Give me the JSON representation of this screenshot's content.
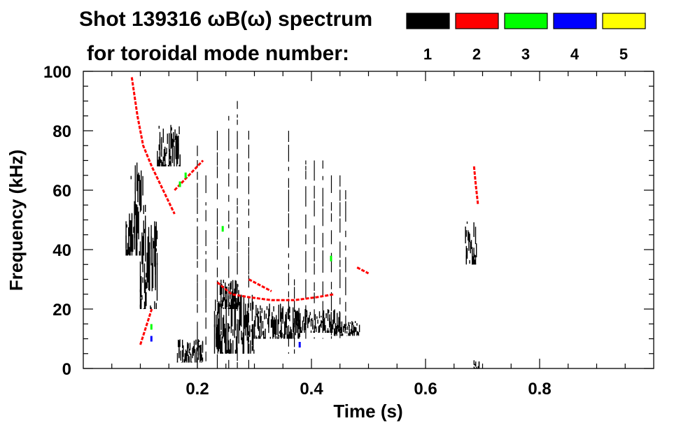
{
  "chart_data": {
    "type": "heatmap",
    "title_line1": "Shot 139316 ωB(ω) spectrum",
    "title_line2": "for toroidal mode number:",
    "xlabel": "Time (s)",
    "ylabel": "Frequency (kHz)",
    "xlim": [
      0.0,
      1.0
    ],
    "ylim": [
      0,
      100
    ],
    "xticks": [
      0.2,
      0.4,
      0.6,
      0.8
    ],
    "xtick_labels": [
      "0.2",
      "0.4",
      "0.6",
      "0.8"
    ],
    "yticks": [
      0,
      20,
      40,
      60,
      80,
      100
    ],
    "ytick_labels": [
      "0",
      "20",
      "40",
      "60",
      "80",
      "100"
    ],
    "legend_position": "top-right",
    "legend": [
      {
        "label": "1",
        "color": "#000000"
      },
      {
        "label": "2",
        "color": "#ff0000"
      },
      {
        "label": "3",
        "color": "#00ff00"
      },
      {
        "label": "4",
        "color": "#0000ff"
      },
      {
        "label": "5",
        "color": "#ffff00"
      }
    ],
    "series": [
      {
        "name": "1",
        "color": "#000000",
        "regions": [
          {
            "t": [
              0.075,
              0.11
            ],
            "f": [
              38,
              70
            ]
          },
          {
            "t": [
              0.1,
              0.13
            ],
            "f": [
              20,
              50
            ]
          },
          {
            "t": [
              0.13,
              0.17
            ],
            "f": [
              68,
              82
            ]
          },
          {
            "t": [
              0.165,
              0.21
            ],
            "f": [
              2,
              10
            ]
          },
          {
            "t": [
              0.23,
              0.3
            ],
            "f": [
              5,
              25
            ]
          },
          {
            "t": [
              0.24,
              0.275
            ],
            "f": [
              20,
              30
            ]
          },
          {
            "t": [
              0.3,
              0.38
            ],
            "f": [
              10,
              22
            ]
          },
          {
            "t": [
              0.37,
              0.45
            ],
            "f": [
              12,
              20
            ]
          },
          {
            "t": [
              0.44,
              0.485
            ],
            "f": [
              11,
              16
            ]
          },
          {
            "t": [
              0.67,
              0.69
            ],
            "f": [
              35,
              50
            ]
          },
          {
            "t": [
              0.685,
              0.695
            ],
            "f": [
              0,
              4
            ]
          }
        ],
        "streaks": [
          {
            "t": 0.2,
            "f": [
              0,
              75
            ]
          },
          {
            "t": 0.215,
            "f": [
              0,
              65
            ]
          },
          {
            "t": 0.235,
            "f": [
              0,
              80
            ]
          },
          {
            "t": 0.255,
            "f": [
              0,
              85
            ]
          },
          {
            "t": 0.27,
            "f": [
              0,
              90
            ]
          },
          {
            "t": 0.29,
            "f": [
              0,
              80
            ]
          },
          {
            "t": 0.36,
            "f": [
              5,
              80
            ]
          },
          {
            "t": 0.37,
            "f": [
              5,
              30
            ]
          },
          {
            "t": 0.39,
            "f": [
              10,
              70
            ]
          },
          {
            "t": 0.405,
            "f": [
              10,
              70
            ]
          },
          {
            "t": 0.42,
            "f": [
              10,
              70
            ]
          },
          {
            "t": 0.435,
            "f": [
              10,
              65
            ]
          },
          {
            "t": 0.45,
            "f": [
              10,
              65
            ]
          },
          {
            "t": 0.46,
            "f": [
              15,
              60
            ]
          }
        ]
      },
      {
        "name": "2",
        "color": "#ff0000",
        "traces": [
          {
            "t": [
              0.085,
              0.095,
              0.105,
              0.12,
              0.14,
              0.16
            ],
            "f": [
              98,
              85,
              75,
              68,
              60,
              52
            ]
          },
          {
            "t": [
              0.16,
              0.175,
              0.19,
              0.21
            ],
            "f": [
              60,
              63,
              66,
              70
            ]
          },
          {
            "t": [
              0.1,
              0.12
            ],
            "f": [
              8,
              20
            ]
          },
          {
            "t": [
              0.235,
              0.26,
              0.29,
              0.33,
              0.37,
              0.41,
              0.44
            ],
            "f": [
              29,
              25,
              24,
              23,
              23,
              24,
              25
            ]
          },
          {
            "t": [
              0.29,
              0.31,
              0.33
            ],
            "f": [
              30,
              28,
              26
            ]
          },
          {
            "t": [
              0.48,
              0.5
            ],
            "f": [
              34,
              32
            ]
          },
          {
            "t": [
              0.685,
              0.688,
              0.692
            ],
            "f": [
              68,
              62,
              55
            ]
          }
        ]
      },
      {
        "name": "3",
        "color": "#00ff00",
        "points": [
          {
            "t": 0.18,
            "f": 65
          },
          {
            "t": 0.17,
            "f": 62
          },
          {
            "t": 0.245,
            "f": 47
          },
          {
            "t": 0.435,
            "f": 37
          },
          {
            "t": 0.12,
            "f": 14
          }
        ]
      },
      {
        "name": "4",
        "color": "#0000ff",
        "points": [
          {
            "t": 0.12,
            "f": 10
          },
          {
            "t": 0.38,
            "f": 8
          }
        ]
      },
      {
        "name": "5",
        "color": "#ffff00",
        "points": []
      }
    ]
  }
}
